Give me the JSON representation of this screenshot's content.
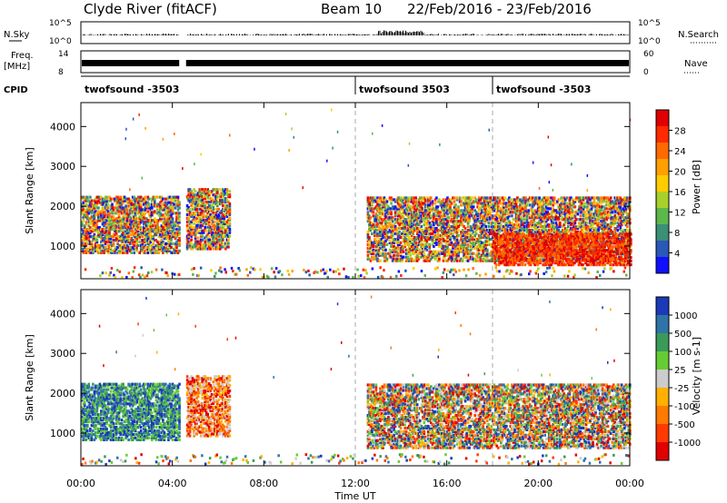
{
  "header": {
    "station": "Clyde River (fitACF)",
    "beam": "Beam 10",
    "date_range": "22/Feb/2016 - 23/Feb/2016"
  },
  "side_labels": {
    "nsky": "N.Sky",
    "freq": "Freq.",
    "freq_unit": "[MHz]",
    "cpid": "CPID",
    "nsearch": "N.Search",
    "nave": "Nave",
    "nsky_ticks": [
      "10^5",
      "10^0"
    ],
    "freq_ticks": [
      "14",
      "8"
    ],
    "nsearch_ticks": [
      "10^5",
      "10^0"
    ],
    "nave_ticks": [
      "60",
      "0"
    ]
  },
  "cpid_segments": [
    {
      "label": "twofsound -3503",
      "start_hour": 0
    },
    {
      "label": "twofsound 3503",
      "start_hour": 12
    },
    {
      "label": "twofsound -3503",
      "start_hour": 18
    }
  ],
  "time_axis": {
    "label": "Time UT",
    "ticks": [
      "00:00",
      "04:00",
      "08:00",
      "12:00",
      "16:00",
      "20:00",
      "00:00"
    ],
    "range_hours": [
      0,
      24
    ],
    "data_gap_hours": [
      4.3,
      4.6
    ]
  },
  "chart_data": [
    {
      "type": "heatmap",
      "name": "power",
      "ylabel": "Slant Range [km]",
      "yticks": [
        "1000",
        "2000",
        "3000",
        "4000"
      ],
      "ylim": [
        180,
        4600
      ],
      "colorbar_label": "Power [dB]",
      "colorbar_ticks": [
        "4",
        "8",
        "12",
        "16",
        "20",
        "24",
        "28"
      ],
      "colors": [
        "#1010ff",
        "#2a58b8",
        "#3a8f76",
        "#5cb84a",
        "#a8d02a",
        "#ffcc00",
        "#ffa000",
        "#ff6a00",
        "#ff2a00",
        "#e00000"
      ],
      "regions": [
        {
          "t": [
            0.0,
            4.3
          ],
          "range_km": [
            800,
            2200
          ],
          "level": "mixed_high"
        },
        {
          "t": [
            4.6,
            6.5
          ],
          "range_km": [
            900,
            2400
          ],
          "level": "mixed_high"
        },
        {
          "t": [
            12.5,
            24.0
          ],
          "range_km": [
            600,
            2200
          ],
          "level": "mixed_high"
        },
        {
          "t": [
            18.0,
            24.0
          ],
          "range_km": [
            500,
            1300
          ],
          "level": "high"
        }
      ]
    },
    {
      "type": "heatmap",
      "name": "velocity",
      "ylabel": "Slant Range [km]",
      "yticks": [
        "1000",
        "2000",
        "3000",
        "4000"
      ],
      "ylim": [
        180,
        4600
      ],
      "colorbar_label": "Velocity [m s-1]",
      "colorbar_ticks": [
        "1000",
        "500",
        "100",
        "25",
        "-25",
        "-100",
        "-500",
        "-1000"
      ],
      "colors": [
        "#1a3ab8",
        "#2f74a8",
        "#3a9a5a",
        "#66cc33",
        "#cccccc",
        "#ffb000",
        "#ff7a00",
        "#ff3a00",
        "#e00000"
      ],
      "regions": [
        {
          "t": [
            0.0,
            4.3
          ],
          "range_km": [
            800,
            2200
          ],
          "level": "toward"
        },
        {
          "t": [
            4.6,
            6.5
          ],
          "range_km": [
            900,
            2400
          ],
          "level": "away"
        },
        {
          "t": [
            12.5,
            24.0
          ],
          "range_km": [
            600,
            2200
          ],
          "level": "mixed"
        }
      ]
    }
  ]
}
